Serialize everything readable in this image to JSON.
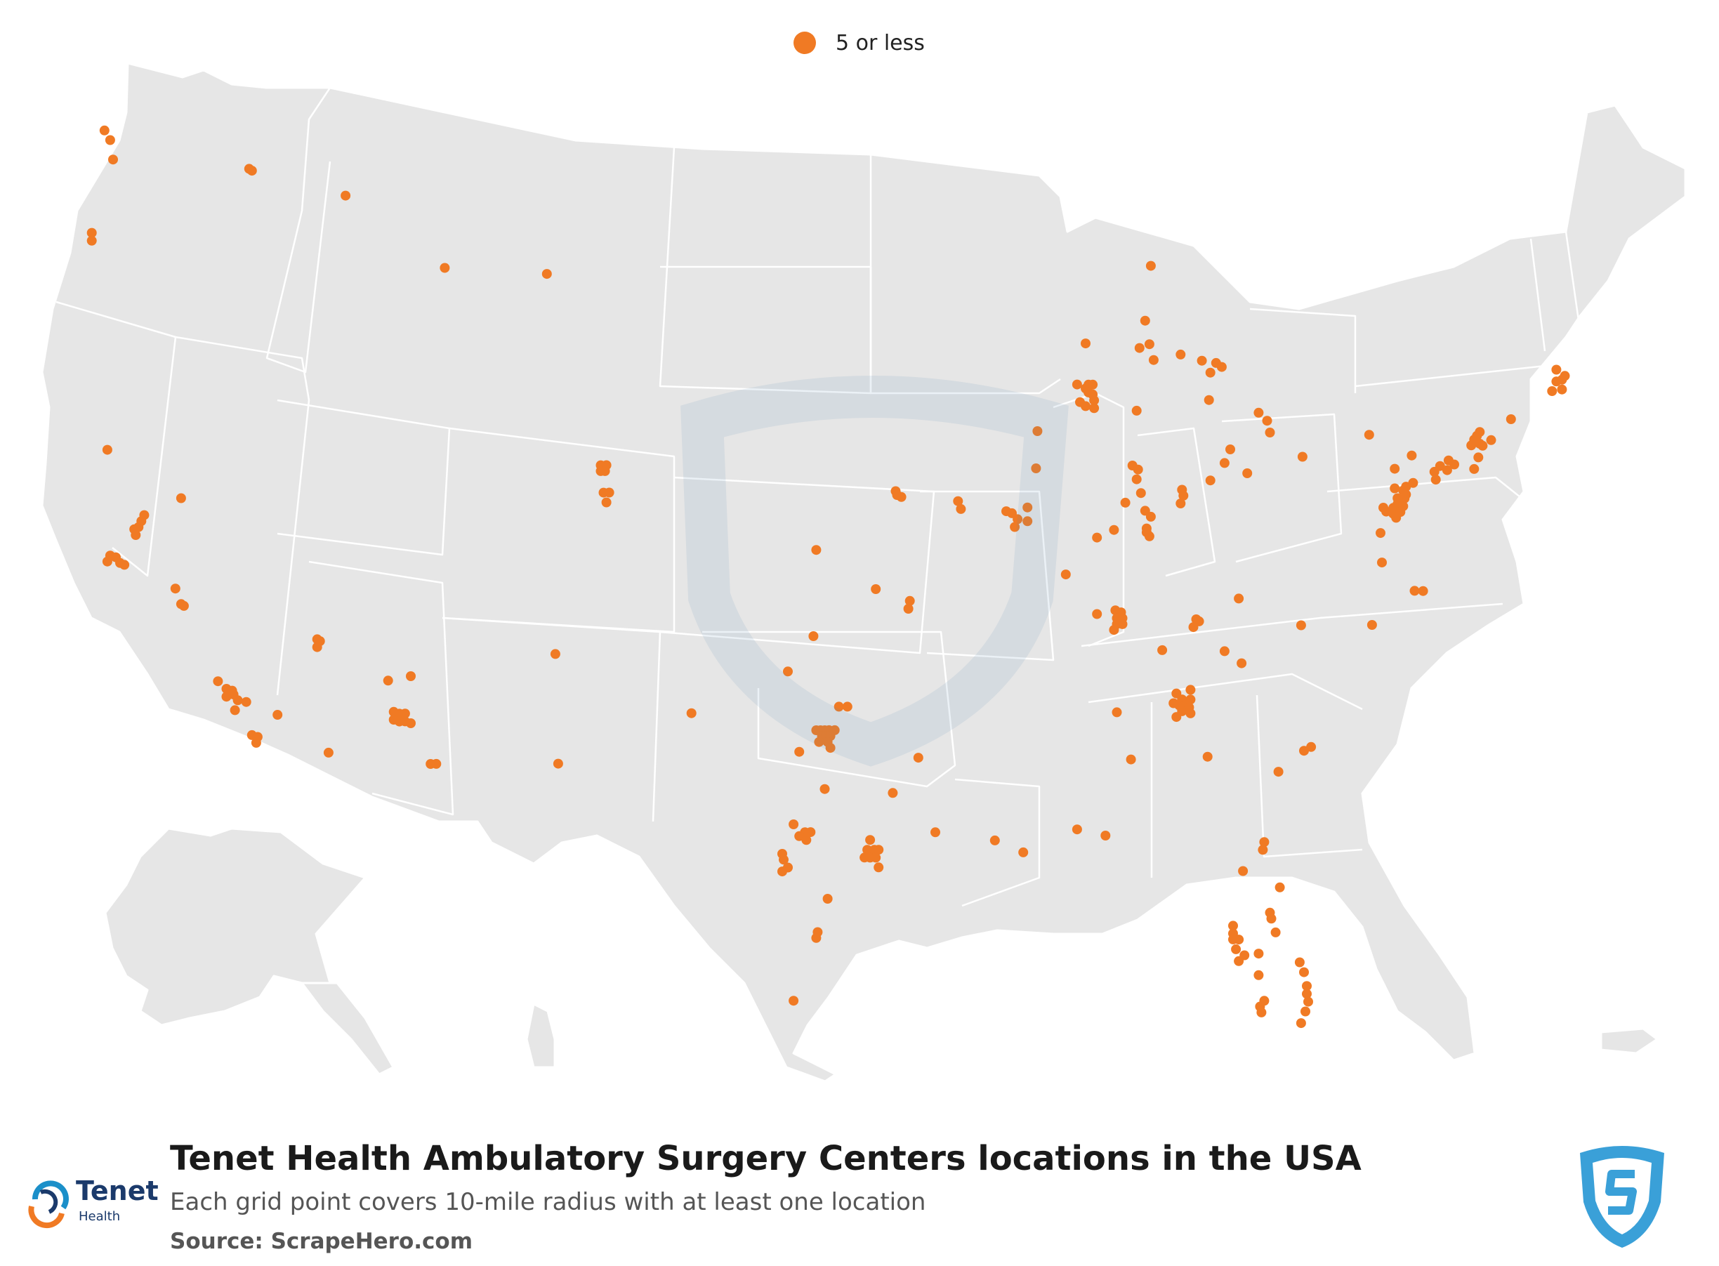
{
  "legend": {
    "label": "5 or less",
    "color": "#f07a24"
  },
  "map": {
    "land_color": "#e6e6e6",
    "border_color": "#ffffff",
    "marker_color": "#f07a24"
  },
  "footer": {
    "title": "Tenet Health Ambulatory Surgery Centers locations in the USA",
    "subtitle": "Each grid point covers 10-mile radius with at least one location",
    "source": "Source: ScrapeHero.com",
    "brand_name": "Tenet",
    "brand_sub": "Health"
  },
  "locations": [
    [
      48.75,
      -122.5
    ],
    [
      48.5,
      -122.3
    ],
    [
      48.0,
      -122.2
    ],
    [
      47.65,
      -117.4
    ],
    [
      47.6,
      -117.3
    ],
    [
      46.15,
      -122.95
    ],
    [
      45.95,
      -122.95
    ],
    [
      46.9,
      -114.0
    ],
    [
      44.8,
      -106.9
    ],
    [
      45.0,
      -110.5
    ],
    [
      40.6,
      -122.4
    ],
    [
      39.3,
      -119.8
    ],
    [
      38.9,
      -121.1
    ],
    [
      38.75,
      -121.2
    ],
    [
      38.6,
      -121.3
    ],
    [
      38.55,
      -121.45
    ],
    [
      38.4,
      -121.4
    ],
    [
      37.9,
      -122.3
    ],
    [
      37.85,
      -122.1
    ],
    [
      37.75,
      -122.4
    ],
    [
      37.7,
      -121.95
    ],
    [
      37.65,
      -121.8
    ],
    [
      37.0,
      -120.0
    ],
    [
      36.6,
      -119.8
    ],
    [
      36.55,
      -119.7
    ],
    [
      34.6,
      -118.5
    ],
    [
      34.4,
      -118.2
    ],
    [
      34.35,
      -118.0
    ],
    [
      34.25,
      -117.95
    ],
    [
      34.2,
      -118.2
    ],
    [
      34.1,
      -117.8
    ],
    [
      34.05,
      -117.5
    ],
    [
      33.85,
      -117.9
    ],
    [
      33.7,
      -116.4
    ],
    [
      33.2,
      -117.3
    ],
    [
      33.15,
      -117.1
    ],
    [
      33.0,
      -117.15
    ],
    [
      32.7,
      -114.6
    ],
    [
      35.6,
      -115.0
    ],
    [
      35.55,
      -114.9
    ],
    [
      35.4,
      -115.0
    ],
    [
      34.5,
      -112.5
    ],
    [
      34.6,
      -111.7
    ],
    [
      33.7,
      -112.3
    ],
    [
      33.65,
      -112.1
    ],
    [
      33.65,
      -111.9
    ],
    [
      33.5,
      -112.3
    ],
    [
      33.45,
      -112.1
    ],
    [
      33.45,
      -111.9
    ],
    [
      33.4,
      -111.7
    ],
    [
      32.35,
      -111.0
    ],
    [
      32.35,
      -110.8
    ],
    [
      35.1,
      -106.6
    ],
    [
      32.3,
      -106.5
    ],
    [
      39.9,
      -105.0
    ],
    [
      39.9,
      -104.8
    ],
    [
      39.75,
      -105.0
    ],
    [
      39.75,
      -104.85
    ],
    [
      39.2,
      -104.9
    ],
    [
      39.2,
      -104.7
    ],
    [
      38.95,
      -104.8
    ],
    [
      37.7,
      -97.4
    ],
    [
      36.7,
      -95.3
    ],
    [
      39.2,
      -94.6
    ],
    [
      39.1,
      -94.55
    ],
    [
      39.05,
      -94.4
    ],
    [
      38.95,
      -92.4
    ],
    [
      38.75,
      -92.3
    ],
    [
      36.4,
      -94.1
    ],
    [
      36.2,
      -94.15
    ],
    [
      35.5,
      -97.5
    ],
    [
      34.6,
      -98.4
    ],
    [
      33.55,
      -101.8
    ],
    [
      33.7,
      -96.6
    ],
    [
      33.7,
      -96.3
    ],
    [
      33.1,
      -97.4
    ],
    [
      33.1,
      -97.25
    ],
    [
      33.1,
      -97.1
    ],
    [
      33.1,
      -96.95
    ],
    [
      33.1,
      -96.75
    ],
    [
      32.95,
      -97.2
    ],
    [
      32.95,
      -97.05
    ],
    [
      32.95,
      -96.9
    ],
    [
      32.8,
      -97.3
    ],
    [
      32.8,
      -97.0
    ],
    [
      32.65,
      -96.9
    ],
    [
      32.55,
      -98.0
    ],
    [
      31.6,
      -97.1
    ],
    [
      31.5,
      -94.7
    ],
    [
      30.7,
      -98.2
    ],
    [
      30.5,
      -97.8
    ],
    [
      30.5,
      -97.6
    ],
    [
      30.4,
      -98.0
    ],
    [
      30.3,
      -97.75
    ],
    [
      29.95,
      -98.6
    ],
    [
      29.8,
      -98.55
    ],
    [
      29.6,
      -98.4
    ],
    [
      29.5,
      -98.6
    ],
    [
      30.3,
      -95.5
    ],
    [
      30.05,
      -95.6
    ],
    [
      30.05,
      -95.35
    ],
    [
      30.05,
      -95.2
    ],
    [
      29.85,
      -95.7
    ],
    [
      29.85,
      -95.5
    ],
    [
      29.85,
      -95.3
    ],
    [
      29.6,
      -95.2
    ],
    [
      28.8,
      -97.0
    ],
    [
      27.95,
      -97.35
    ],
    [
      27.8,
      -97.4
    ],
    [
      26.2,
      -98.2
    ],
    [
      32.4,
      -93.8
    ],
    [
      30.5,
      -93.2
    ],
    [
      30.3,
      -91.1
    ],
    [
      30.0,
      -90.1
    ],
    [
      38.7,
      -90.7
    ],
    [
      38.65,
      -90.5
    ],
    [
      38.5,
      -90.3
    ],
    [
      38.3,
      -90.4
    ],
    [
      38.45,
      -89.95
    ],
    [
      37.1,
      -88.6
    ],
    [
      41.95,
      -88.2
    ],
    [
      41.95,
      -87.8
    ],
    [
      41.85,
      -87.9
    ],
    [
      41.75,
      -87.8
    ],
    [
      41.7,
      -87.65
    ],
    [
      41.55,
      -87.6
    ],
    [
      41.5,
      -88.1
    ],
    [
      41.4,
      -87.9
    ],
    [
      41.35,
      -87.6
    ],
    [
      40.75,
      -89.6
    ],
    [
      39.8,
      -89.65
    ],
    [
      38.8,
      -89.95
    ],
    [
      43.0,
      -87.9
    ],
    [
      41.95,
      -87.65
    ],
    [
      45.0,
      -85.6
    ],
    [
      43.6,
      -85.8
    ],
    [
      43.0,
      -85.65
    ],
    [
      42.9,
      -86.0
    ],
    [
      42.6,
      -85.5
    ],
    [
      42.75,
      -84.55
    ],
    [
      42.6,
      -83.8
    ],
    [
      42.55,
      -83.3
    ],
    [
      42.45,
      -83.1
    ],
    [
      42.3,
      -83.5
    ],
    [
      41.3,
      -86.1
    ],
    [
      39.9,
      -86.25
    ],
    [
      39.8,
      -86.05
    ],
    [
      39.55,
      -86.1
    ],
    [
      39.2,
      -85.95
    ],
    [
      38.95,
      -86.5
    ],
    [
      38.75,
      -85.8
    ],
    [
      38.6,
      -85.6
    ],
    [
      38.3,
      -85.75
    ],
    [
      38.1,
      -85.65
    ],
    [
      38.25,
      -86.9
    ],
    [
      38.05,
      -87.5
    ],
    [
      41.6,
      -83.55
    ],
    [
      41.3,
      -81.8
    ],
    [
      41.1,
      -81.5
    ],
    [
      40.8,
      -81.4
    ],
    [
      40.35,
      -82.8
    ],
    [
      40.0,
      -83.0
    ],
    [
      39.75,
      -82.2
    ],
    [
      39.55,
      -83.5
    ],
    [
      39.3,
      -84.5
    ],
    [
      39.15,
      -84.45
    ],
    [
      38.95,
      -84.55
    ],
    [
      38.2,
      -85.75
    ],
    [
      36.55,
      -82.5
    ],
    [
      40.2,
      -80.25
    ],
    [
      36.2,
      -86.85
    ],
    [
      36.15,
      -86.65
    ],
    [
      36.0,
      -86.8
    ],
    [
      36.0,
      -86.6
    ],
    [
      35.85,
      -86.8
    ],
    [
      35.85,
      -86.6
    ],
    [
      35.7,
      -86.9
    ],
    [
      36.1,
      -87.5
    ],
    [
      35.2,
      -85.2
    ],
    [
      36.0,
      -84.0
    ],
    [
      35.95,
      -83.9
    ],
    [
      35.8,
      -84.1
    ],
    [
      35.9,
      -80.3
    ],
    [
      35.95,
      -77.8
    ],
    [
      35.2,
      -83.0
    ],
    [
      34.9,
      -82.4
    ],
    [
      34.1,
      -84.7
    ],
    [
      33.95,
      -84.5
    ],
    [
      33.95,
      -84.2
    ],
    [
      33.85,
      -84.8
    ],
    [
      33.8,
      -84.6
    ],
    [
      33.8,
      -84.4
    ],
    [
      33.75,
      -84.25
    ],
    [
      33.65,
      -84.5
    ],
    [
      33.6,
      -84.2
    ],
    [
      33.5,
      -84.7
    ],
    [
      32.5,
      -83.6
    ],
    [
      34.2,
      -84.2
    ],
    [
      33.6,
      -86.8
    ],
    [
      32.4,
      -86.3
    ],
    [
      30.6,
      -88.2
    ],
    [
      30.45,
      -87.2
    ],
    [
      32.8,
      -79.95
    ],
    [
      32.7,
      -80.2
    ],
    [
      32.15,
      -81.1
    ],
    [
      30.35,
      -81.6
    ],
    [
      30.15,
      -81.65
    ],
    [
      29.6,
      -82.35
    ],
    [
      29.2,
      -81.05
    ],
    [
      28.55,
      -81.4
    ],
    [
      28.4,
      -81.35
    ],
    [
      28.05,
      -81.2
    ],
    [
      28.2,
      -82.7
    ],
    [
      28.0,
      -82.7
    ],
    [
      27.85,
      -82.5
    ],
    [
      27.85,
      -82.7
    ],
    [
      27.6,
      -82.6
    ],
    [
      27.45,
      -82.3
    ],
    [
      27.3,
      -82.5
    ],
    [
      27.5,
      -81.8
    ],
    [
      26.95,
      -81.8
    ],
    [
      27.3,
      -80.35
    ],
    [
      27.05,
      -80.2
    ],
    [
      26.7,
      -80.1
    ],
    [
      26.5,
      -80.1
    ],
    [
      26.3,
      -80.05
    ],
    [
      26.05,
      -80.15
    ],
    [
      25.75,
      -80.3
    ],
    [
      26.3,
      -81.6
    ],
    [
      26.15,
      -81.75
    ],
    [
      26.0,
      -81.7
    ],
    [
      38.95,
      -77.4
    ],
    [
      38.85,
      -77.3
    ],
    [
      38.8,
      -77.05
    ],
    [
      38.95,
      -77.05
    ],
    [
      39.05,
      -76.9
    ],
    [
      39.2,
      -76.65
    ],
    [
      39.3,
      -76.6
    ],
    [
      39.4,
      -76.7
    ],
    [
      39.45,
      -77.0
    ],
    [
      39.2,
      -76.9
    ],
    [
      39.0,
      -76.7
    ],
    [
      38.85,
      -76.8
    ],
    [
      38.7,
      -76.95
    ],
    [
      39.5,
      -76.6
    ],
    [
      39.6,
      -76.35
    ],
    [
      39.95,
      -75.15
    ],
    [
      40.05,
      -75.4
    ],
    [
      40.1,
      -74.9
    ],
    [
      40.2,
      -75.1
    ],
    [
      39.9,
      -75.6
    ],
    [
      39.7,
      -75.55
    ],
    [
      40.6,
      -74.3
    ],
    [
      40.65,
      -74.0
    ],
    [
      40.75,
      -74.2
    ],
    [
      40.85,
      -74.1
    ],
    [
      40.95,
      -74.0
    ],
    [
      40.6,
      -73.9
    ],
    [
      40.75,
      -73.6
    ],
    [
      40.3,
      -74.05
    ],
    [
      40.0,
      -74.2
    ],
    [
      39.95,
      -77.0
    ],
    [
      40.3,
      -76.4
    ],
    [
      40.8,
      -77.9
    ],
    [
      37.55,
      -77.45
    ],
    [
      38.3,
      -77.5
    ],
    [
      36.85,
      -76.3
    ],
    [
      36.85,
      -76.0
    ],
    [
      42.35,
      -71.1
    ],
    [
      42.45,
      -71.0
    ],
    [
      42.3,
      -71.3
    ],
    [
      42.1,
      -71.1
    ],
    [
      42.6,
      -71.3
    ],
    [
      42.05,
      -71.45
    ],
    [
      41.3,
      -72.9
    ]
  ]
}
